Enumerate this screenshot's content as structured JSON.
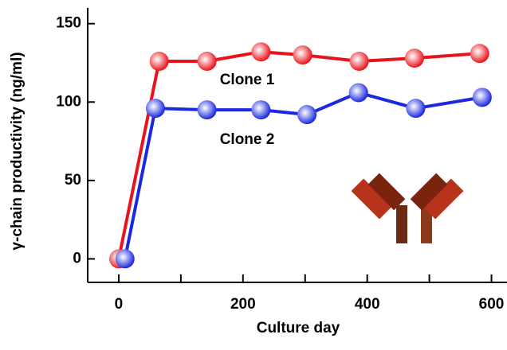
{
  "chart_data": {
    "type": "line",
    "xlabel": "Culture day",
    "ylabel": "γ-chain productivity (ng/ml)",
    "xlim": [
      -50,
      625
    ],
    "ylim": [
      -15,
      160
    ],
    "xticks": [
      0,
      200,
      400,
      600
    ],
    "x_minor_ticks": [
      100,
      300,
      500
    ],
    "yticks": [
      0,
      50,
      100,
      150
    ],
    "series": [
      {
        "name": "Clone 1",
        "color": "#e8141c",
        "x": [
          0,
          65,
          142,
          229,
          296,
          387,
          476,
          581
        ],
        "values": [
          0,
          126,
          126,
          132,
          130,
          126,
          128,
          131
        ]
      },
      {
        "name": "Clone 2",
        "color": "#1a28e0",
        "x": [
          10,
          59,
          142,
          229,
          303,
          386,
          478,
          585
        ],
        "values": [
          0,
          96,
          95,
          95,
          92,
          106,
          96,
          103
        ]
      }
    ]
  }
}
